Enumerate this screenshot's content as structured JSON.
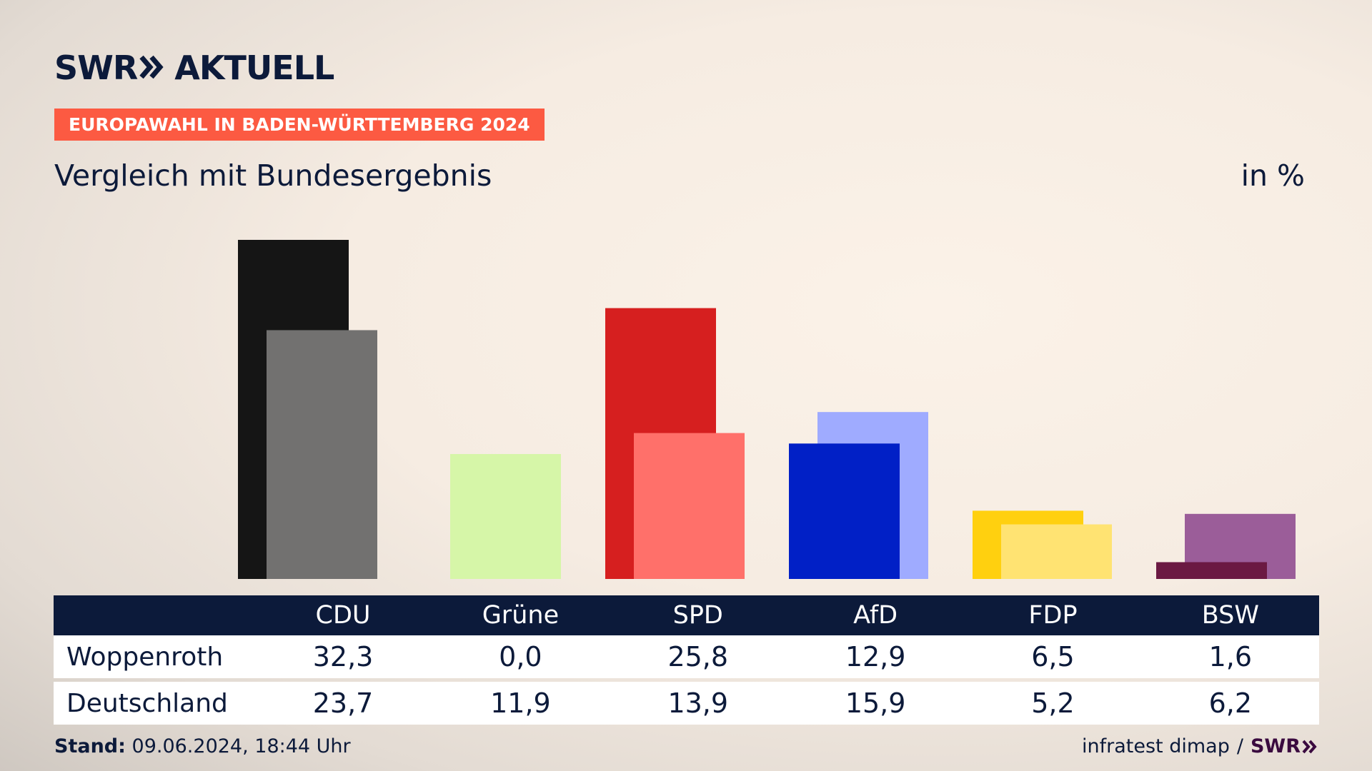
{
  "brand": {
    "logo_text": "SWR",
    "logo_suffix": "AKTUELL"
  },
  "header": {
    "tag": "EUROPAWAHL IN BADEN-WÜRTTEMBERG 2024",
    "subtitle": "Vergleich mit Bundesergebnis",
    "unit": "in %"
  },
  "table": {
    "rows": [
      {
        "label": "Woppenroth",
        "values": [
          "32,3",
          "0,0",
          "25,8",
          "12,9",
          "6,5",
          "1,6"
        ]
      },
      {
        "label": "Deutschland",
        "values": [
          "23,7",
          "11,9",
          "13,9",
          "15,9",
          "5,2",
          "6,2"
        ]
      }
    ]
  },
  "footer": {
    "stand_label": "Stand:",
    "stand_value": "09.06.2024, 18:44 Uhr",
    "source": "infratest dimap",
    "separator": "/",
    "source_brand": "SWR"
  },
  "chart_data": {
    "type": "bar",
    "categories": [
      "CDU",
      "Grüne",
      "SPD",
      "AfD",
      "FDP",
      "BSW"
    ],
    "series": [
      {
        "name": "Woppenroth",
        "values": [
          32.3,
          0.0,
          25.8,
          12.9,
          6.5,
          1.6
        ],
        "colors": [
          "#151515",
          "#d6f6a8",
          "#d61f1f",
          "#0120c6",
          "#ffd00f",
          "#6b1942"
        ]
      },
      {
        "name": "Deutschland",
        "values": [
          23.7,
          11.9,
          13.9,
          15.9,
          5.2,
          6.2
        ],
        "colors": [
          "#727170",
          "#d6f6a8",
          "#ff706a",
          "#9fabff",
          "#ffe372",
          "#9b5d99"
        ]
      }
    ],
    "ylim": [
      0,
      32.3
    ],
    "grid": false,
    "legend": "table-below"
  }
}
